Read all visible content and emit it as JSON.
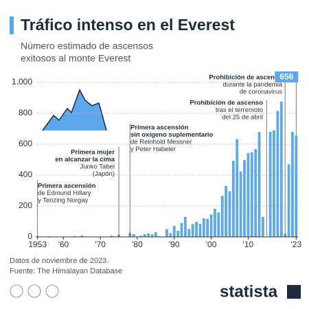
{
  "chart_data": {
    "type": "bar",
    "title": "Tráfico intenso en el Everest",
    "subtitle": [
      "Número estimado de ascensos",
      "exitosos al monte Everest"
    ],
    "x": [
      1953,
      1954,
      1955,
      1956,
      1957,
      1958,
      1959,
      1960,
      1961,
      1962,
      1963,
      1964,
      1965,
      1966,
      1967,
      1968,
      1969,
      1970,
      1971,
      1972,
      1973,
      1974,
      1975,
      1976,
      1977,
      1978,
      1979,
      1980,
      1981,
      1982,
      1983,
      1984,
      1985,
      1986,
      1987,
      1988,
      1989,
      1990,
      1991,
      1992,
      1993,
      1994,
      1995,
      1996,
      1997,
      1998,
      1999,
      2000,
      2001,
      2002,
      2003,
      2004,
      2005,
      2006,
      2007,
      2008,
      2009,
      2010,
      2011,
      2012,
      2013,
      2014,
      2015,
      2016,
      2017,
      2018,
      2019,
      2020,
      2021,
      2022,
      2023
    ],
    "values": [
      6,
      0,
      0,
      4,
      0,
      0,
      0,
      3,
      0,
      0,
      6,
      0,
      9,
      0,
      0,
      0,
      0,
      2,
      0,
      0,
      8,
      0,
      14,
      2,
      2,
      25,
      18,
      3,
      8,
      18,
      23,
      17,
      30,
      4,
      2,
      50,
      24,
      72,
      40,
      90,
      129,
      51,
      83,
      98,
      85,
      120,
      117,
      145,
      182,
      159,
      266,
      330,
      296,
      493,
      633,
      423,
      498,
      543,
      548,
      568,
      680,
      130,
      0,
      680,
      690,
      815,
      876,
      20,
      470,
      680,
      656
    ],
    "color": "#5ba8ec",
    "xlim": [
      1952.5,
      2023.5
    ],
    "ylim": [
      0,
      1000
    ],
    "yticks": [
      0,
      200,
      400,
      600,
      800,
      {
        "value": 1000,
        "label": "1.000"
      }
    ],
    "xticks": [
      1953,
      {
        "value": 1960,
        "label": "'60"
      },
      {
        "value": 1970,
        "label": "'70"
      },
      {
        "value": 1980,
        "label": "'80"
      },
      {
        "value": 1990,
        "label": "'90"
      },
      {
        "value": 2000,
        "label": "'00"
      },
      {
        "value": 2010,
        "label": "'10"
      },
      {
        "value": 2023,
        "label": "'23"
      }
    ],
    "grid": true,
    "annotations": [
      {
        "x": 1953,
        "bold": [
          "Primera ascensión"
        ],
        "text": [
          "de Edmund Hillary",
          "y Tenzing Norgay"
        ]
      },
      {
        "x": 1975,
        "bold": [
          "Primera mujer",
          "en alcanzar la cima"
        ],
        "text": [
          "Junko Tabei",
          "(Japón)"
        ]
      },
      {
        "x": 1978,
        "bold": [
          "Primera ascensión",
          "sin oxígeno suplementario"
        ],
        "text": [
          "de Reinhold Messner",
          "y Peter Habeler"
        ]
      },
      {
        "x": 2015,
        "bold": [
          "Prohibición de ascenso"
        ],
        "text": [
          "tras el terremoto",
          "del 25 de abril"
        ]
      },
      {
        "x": 2020,
        "bold": [
          "Prohibición de ascenso"
        ],
        "text": [
          "durante la pandemia",
          "de coronavirus"
        ]
      }
    ],
    "notes": [
      "Datos de noviembre de 2023.",
      "Fuente: The Himalayan Database"
    ],
    "brand": "statista"
  }
}
